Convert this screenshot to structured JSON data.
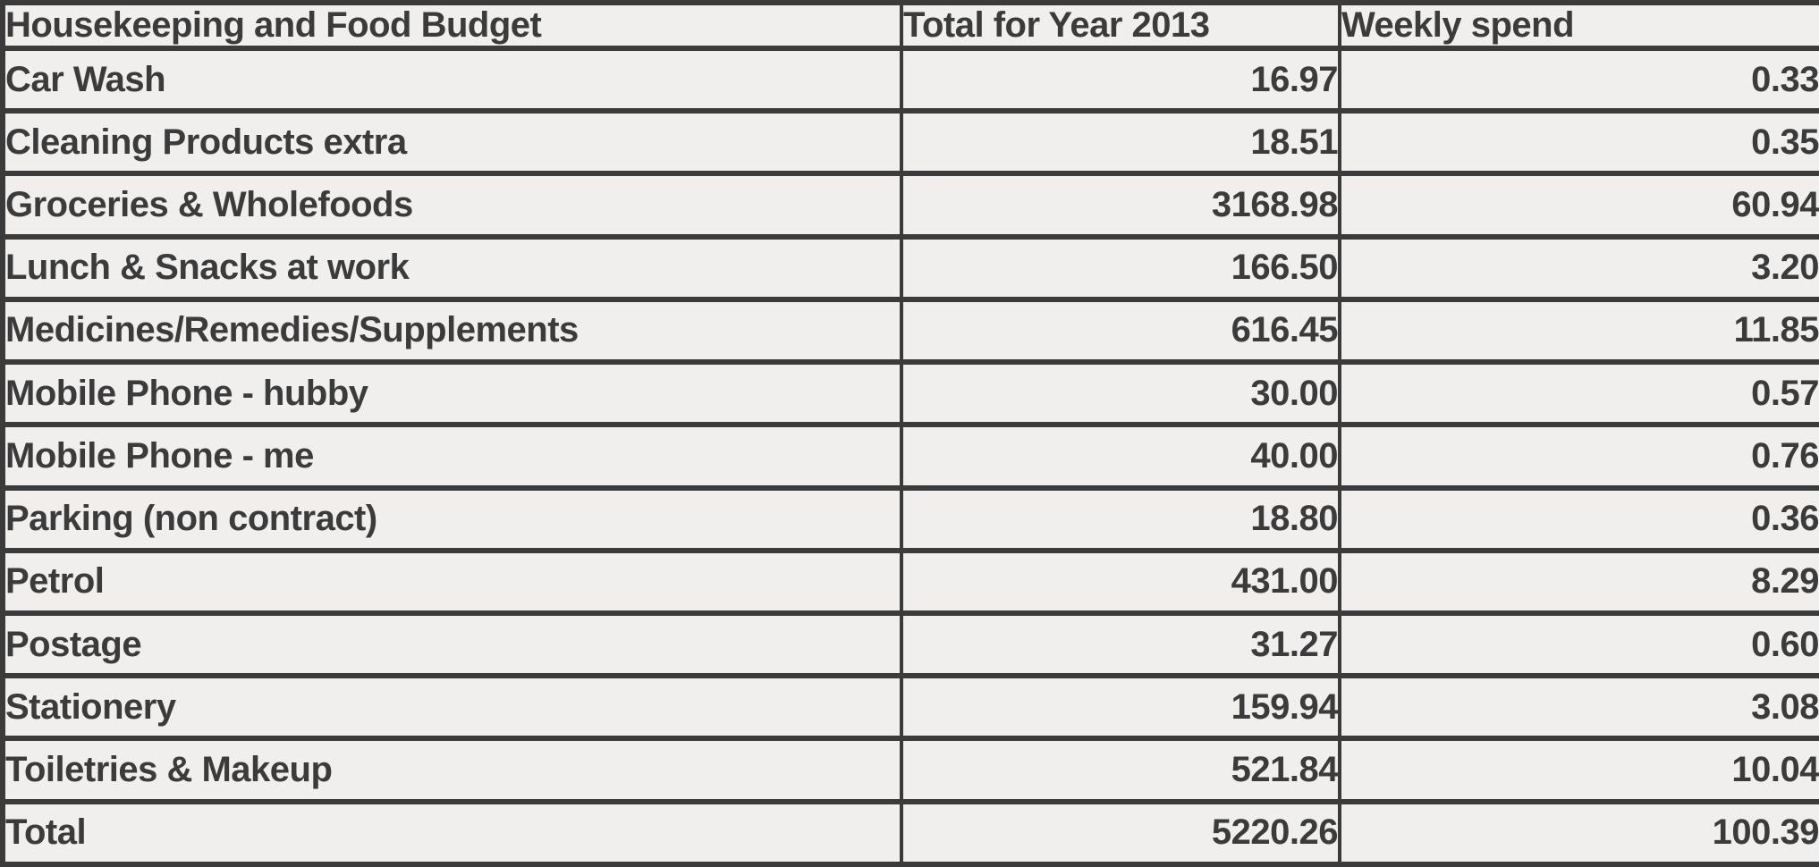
{
  "colors": {
    "cell_background": "#f0efee",
    "border": "#3b3b3b",
    "text": "#3b3b3b"
  },
  "table": {
    "columns": [
      {
        "label": "Housekeeping and Food Budget"
      },
      {
        "label": "Total for Year 2013"
      },
      {
        "label": "Weekly spend"
      }
    ],
    "rows": [
      {
        "category": "Car Wash",
        "total": "16.97",
        "weekly": "0.33"
      },
      {
        "category": "Cleaning Products extra",
        "total": "18.51",
        "weekly": "0.35"
      },
      {
        "category": "Groceries & Wholefoods",
        "total": "3168.98",
        "weekly": "60.94"
      },
      {
        "category": "Lunch & Snacks at work",
        "total": "166.50",
        "weekly": "3.20"
      },
      {
        "category": "Medicines/Remedies/Supplements",
        "total": "616.45",
        "weekly": "11.85"
      },
      {
        "category": "Mobile Phone - hubby",
        "total": "30.00",
        "weekly": "0.57"
      },
      {
        "category": "Mobile Phone - me",
        "total": "40.00",
        "weekly": "0.76"
      },
      {
        "category": "Parking (non contract)",
        "total": "18.80",
        "weekly": "0.36"
      },
      {
        "category": "Petrol",
        "total": "431.00",
        "weekly": "8.29"
      },
      {
        "category": "Postage",
        "total": "31.27",
        "weekly": "0.60"
      },
      {
        "category": "Stationery",
        "total": "159.94",
        "weekly": "3.08"
      },
      {
        "category": "Toiletries & Makeup",
        "total": "521.84",
        "weekly": "10.04"
      }
    ],
    "total_row": {
      "category": "Total",
      "total": "5220.26",
      "weekly": "100.39"
    }
  },
  "chart_data": {
    "type": "table",
    "title": "Housekeeping and Food Budget",
    "columns": [
      "Housekeeping and Food Budget",
      "Total for Year 2013",
      "Weekly spend"
    ],
    "categories": [
      "Car Wash",
      "Cleaning Products extra",
      "Groceries & Wholefoods",
      "Lunch & Snacks at work",
      "Medicines/Remedies/Supplements",
      "Mobile Phone - hubby",
      "Mobile Phone - me",
      "Parking (non contract)",
      "Petrol",
      "Postage",
      "Stationery",
      "Toiletries & Makeup"
    ],
    "series": [
      {
        "name": "Total for Year 2013",
        "values": [
          16.97,
          18.51,
          3168.98,
          166.5,
          616.45,
          30.0,
          40.0,
          18.8,
          431.0,
          31.27,
          159.94,
          521.84
        ]
      },
      {
        "name": "Weekly spend",
        "values": [
          0.33,
          0.35,
          60.94,
          3.2,
          11.85,
          0.57,
          0.76,
          0.36,
          8.29,
          0.6,
          3.08,
          10.04
        ]
      }
    ],
    "totals": {
      "Total for Year 2013": 5220.26,
      "Weekly spend": 100.39
    }
  }
}
